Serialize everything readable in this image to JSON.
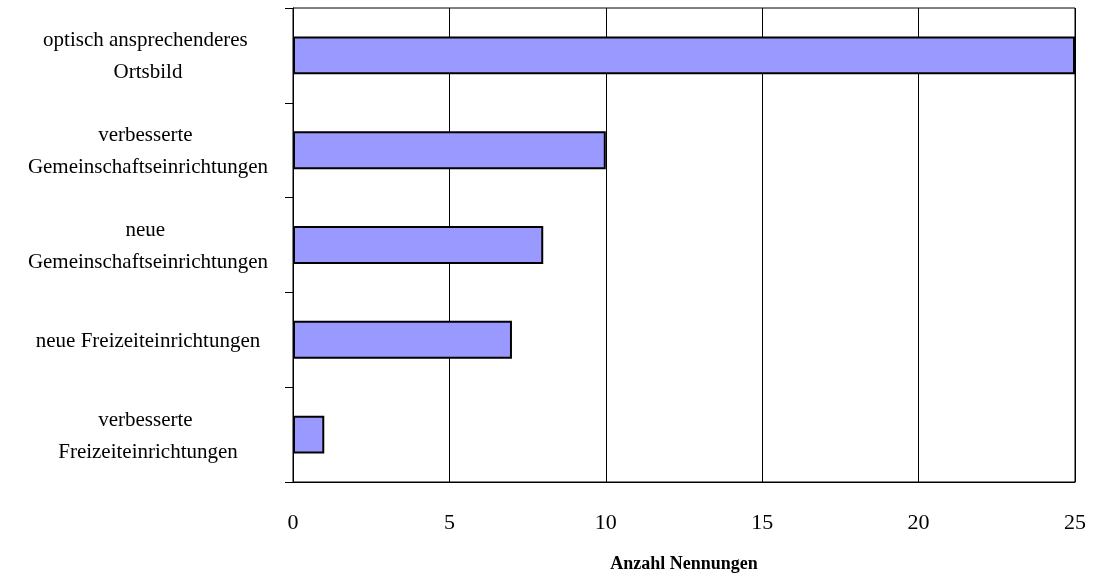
{
  "chart_data": {
    "type": "bar",
    "orientation": "horizontal",
    "xlabel": "Anzahl Nennungen",
    "categories": [
      "optisch ansprechenderes Ortsbild",
      "verbesserte Gemeinschaftseinrichtungen",
      "neue Gemeinschaftseinrichtungen",
      "neue Freizeiteinrichtungen",
      "verbesserte Freizeiteinrichtungen"
    ],
    "values": [
      25,
      10,
      8,
      7,
      1
    ],
    "color": "#9999ff",
    "xlim": [
      0,
      25
    ],
    "xticks": [
      0,
      5,
      10,
      15,
      20,
      25
    ],
    "grid": "x"
  }
}
